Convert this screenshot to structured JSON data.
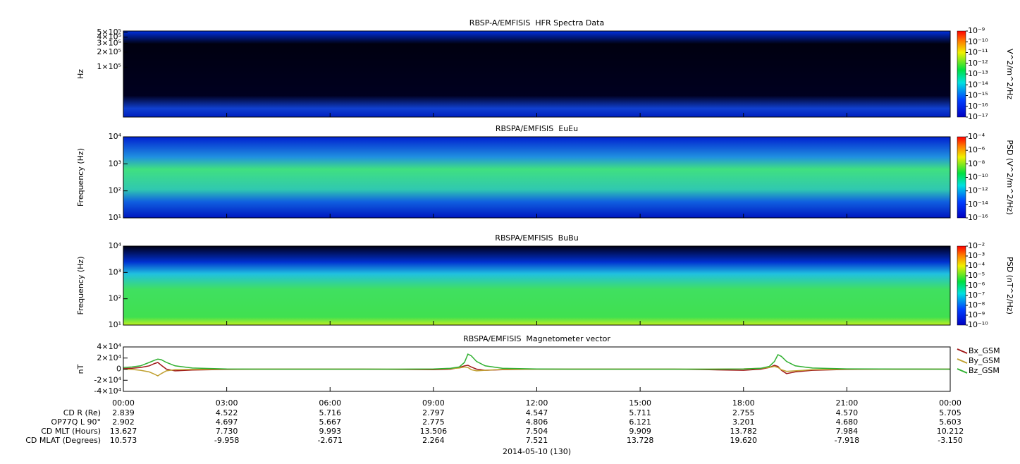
{
  "chart_data": [
    {
      "type": "spectrogram",
      "title": "RBSP-A/EMFISIS  HFR Spectra Data",
      "ylabel": "Hz",
      "log": true,
      "ylim": [
        10000,
        530000
      ],
      "yticks": [
        {
          "value": 500000,
          "label": "5×10⁵"
        },
        {
          "value": 400000,
          "label": "4×10⁵"
        },
        {
          "value": 300000,
          "label": "3×10⁵"
        },
        {
          "value": 200000,
          "label": "2×10⁵"
        },
        {
          "value": 100000,
          "label": "1×10⁵"
        }
      ],
      "colorbar": {
        "label": "V^2/m^2/Hz",
        "lim": [
          1e-17,
          1e-09
        ],
        "ticks": [
          {
            "value": 1e-09,
            "label": "10⁻⁹"
          },
          {
            "value": 1e-10,
            "label": "10⁻¹⁰"
          },
          {
            "value": 1e-11,
            "label": "10⁻¹¹"
          },
          {
            "value": 1e-12,
            "label": "10⁻¹²"
          },
          {
            "value": 1e-13,
            "label": "10⁻¹³"
          },
          {
            "value": 1e-14,
            "label": "10⁻¹⁴"
          },
          {
            "value": 1e-15,
            "label": "10⁻¹⁵"
          },
          {
            "value": 1e-16,
            "label": "10⁻¹⁶"
          },
          {
            "value": 1e-17,
            "label": "10⁻¹⁷"
          }
        ]
      }
    },
    {
      "type": "spectrogram",
      "title": "RBSPA/EMFISIS  EuEu",
      "ylabel": "Frequency (Hz)",
      "log": true,
      "ylim": [
        10,
        10000
      ],
      "yticks": [
        {
          "value": 10000,
          "label": "10⁴"
        },
        {
          "value": 1000,
          "label": "10³"
        },
        {
          "value": 100,
          "label": "10²"
        },
        {
          "value": 10,
          "label": "10¹"
        }
      ],
      "colorbar": {
        "label": "PSD (V^2/m^2/Hz)",
        "lim": [
          1e-16,
          0.0001
        ],
        "ticks": [
          {
            "value": 0.0001,
            "label": "10⁻⁴"
          },
          {
            "value": 1e-06,
            "label": "10⁻⁶"
          },
          {
            "value": 1e-08,
            "label": "10⁻⁸"
          },
          {
            "value": 1e-10,
            "label": "10⁻¹⁰"
          },
          {
            "value": 1e-12,
            "label": "10⁻¹²"
          },
          {
            "value": 1e-14,
            "label": "10⁻¹⁴"
          },
          {
            "value": 1e-16,
            "label": "10⁻¹⁶"
          }
        ]
      }
    },
    {
      "type": "spectrogram",
      "title": "RBSPA/EMFISIS  BuBu",
      "ylabel": "Frequency (Hz)",
      "log": true,
      "ylim": [
        10,
        10000
      ],
      "yticks": [
        {
          "value": 10000,
          "label": "10⁴"
        },
        {
          "value": 1000,
          "label": "10³"
        },
        {
          "value": 100,
          "label": "10²"
        },
        {
          "value": 10,
          "label": "10¹"
        }
      ],
      "colorbar": {
        "label": "PSD (nT^2/Hz)",
        "lim": [
          1e-10,
          0.01
        ],
        "ticks": [
          {
            "value": 0.01,
            "label": "10⁻²"
          },
          {
            "value": 0.001,
            "label": "10⁻³"
          },
          {
            "value": 0.0001,
            "label": "10⁻⁴"
          },
          {
            "value": 1e-05,
            "label": "10⁻⁵"
          },
          {
            "value": 1e-06,
            "label": "10⁻⁶"
          },
          {
            "value": 1e-07,
            "label": "10⁻⁷"
          },
          {
            "value": 1e-08,
            "label": "10⁻⁸"
          },
          {
            "value": 1e-09,
            "label": "10⁻⁹"
          },
          {
            "value": 1e-10,
            "label": "10⁻¹⁰"
          }
        ]
      }
    },
    {
      "type": "line",
      "title": "RBSPA/EMFISIS  Magnetometer vector",
      "ylabel": "nT",
      "ylim": [
        -40000,
        40000
      ],
      "yticks": [
        {
          "value": 40000,
          "label": "4×10⁴"
        },
        {
          "value": 20000,
          "label": "2×10⁴"
        },
        0,
        {
          "value": -20000,
          "label": "-2×10⁴"
        },
        {
          "value": -40000,
          "label": "-4×10⁴"
        }
      ],
      "xlim": [
        0,
        24
      ],
      "xticks": [
        {
          "value": 0,
          "label": "00:00"
        },
        {
          "value": 3,
          "label": "03:00"
        },
        {
          "value": 6,
          "label": "06:00"
        },
        {
          "value": 9,
          "label": "09:00"
        },
        {
          "value": 12,
          "label": "12:00"
        },
        {
          "value": 15,
          "label": "15:00"
        },
        {
          "value": 18,
          "label": "18:00"
        },
        {
          "value": 21,
          "label": "21:00"
        },
        {
          "value": 24,
          "label": "00:00"
        }
      ],
      "x": [
        0,
        0.25,
        0.5,
        0.75,
        0.9,
        1.0,
        1.1,
        1.25,
        1.5,
        2,
        3,
        4,
        5,
        6,
        7,
        8,
        9,
        9.5,
        9.75,
        9.9,
        10.0,
        10.1,
        10.25,
        10.5,
        11,
        12,
        13,
        14,
        15,
        16,
        17,
        18,
        18.5,
        18.75,
        18.9,
        19.0,
        19.1,
        19.25,
        19.5,
        20,
        21,
        22,
        23,
        24
      ],
      "series": [
        {
          "name": "Bx_GSM",
          "color": "#a01818",
          "values": [
            1000,
            1500,
            3000,
            6000,
            10000,
            12000,
            7000,
            0,
            -3000,
            -1500,
            -500,
            0,
            0,
            0,
            0,
            -500,
            -1000,
            0,
            3000,
            6000,
            7000,
            4000,
            0,
            -2000,
            -1000,
            0,
            0,
            0,
            0,
            0,
            -1000,
            -2000,
            0,
            3000,
            7000,
            5000,
            -2000,
            -8000,
            -5000,
            -2000,
            -500,
            0,
            0,
            0
          ]
        },
        {
          "name": "By_GSM",
          "color": "#c0a030",
          "values": [
            0,
            -500,
            -2000,
            -5000,
            -9000,
            -12000,
            -8000,
            -3000,
            -1000,
            -500,
            0,
            0,
            0,
            0,
            0,
            0,
            0,
            1000,
            2000,
            4000,
            3000,
            -1000,
            -3000,
            -2000,
            -500,
            0,
            0,
            0,
            0,
            0,
            0,
            500,
            1500,
            3000,
            5000,
            3000,
            -1000,
            -4000,
            -3000,
            -1000,
            0,
            0,
            0,
            0
          ]
        },
        {
          "name": "Bz_GSM",
          "color": "#30b030",
          "values": [
            3000,
            4000,
            6000,
            12000,
            16000,
            18000,
            17000,
            12000,
            6000,
            2000,
            300,
            0,
            0,
            0,
            0,
            0,
            300,
            1500,
            4000,
            12000,
            27000,
            24000,
            14000,
            6000,
            1500,
            200,
            0,
            0,
            0,
            0,
            0,
            300,
            1500,
            5000,
            14000,
            26000,
            23000,
            14000,
            6000,
            2000,
            500,
            200,
            100,
            0
          ]
        }
      ]
    }
  ],
  "ephemeris": {
    "rows": [
      {
        "label": "CD R (Re)",
        "values": [
          "2.839",
          "4.522",
          "5.716",
          "2.797",
          "4.547",
          "5.711",
          "2.755",
          "4.570",
          "5.705"
        ]
      },
      {
        "label": "OP77Q L 90°",
        "values": [
          "2.902",
          "4.697",
          "5.667",
          "2.775",
          "4.806",
          "6.121",
          "3.201",
          "4.680",
          "5.603"
        ]
      },
      {
        "label": "CD MLT (Hours)",
        "values": [
          "13.627",
          "7.730",
          "9.993",
          "13.506",
          "7.504",
          "9.909",
          "13.782",
          "7.984",
          "10.212"
        ]
      },
      {
        "label": "CD MLAT (Degrees)",
        "values": [
          "10.573",
          "-9.958",
          "-2.671",
          "2.264",
          "7.521",
          "13.728",
          "19.620",
          "-7.918",
          "-3.150"
        ]
      }
    ],
    "date": "2014-05-10 (130)"
  }
}
